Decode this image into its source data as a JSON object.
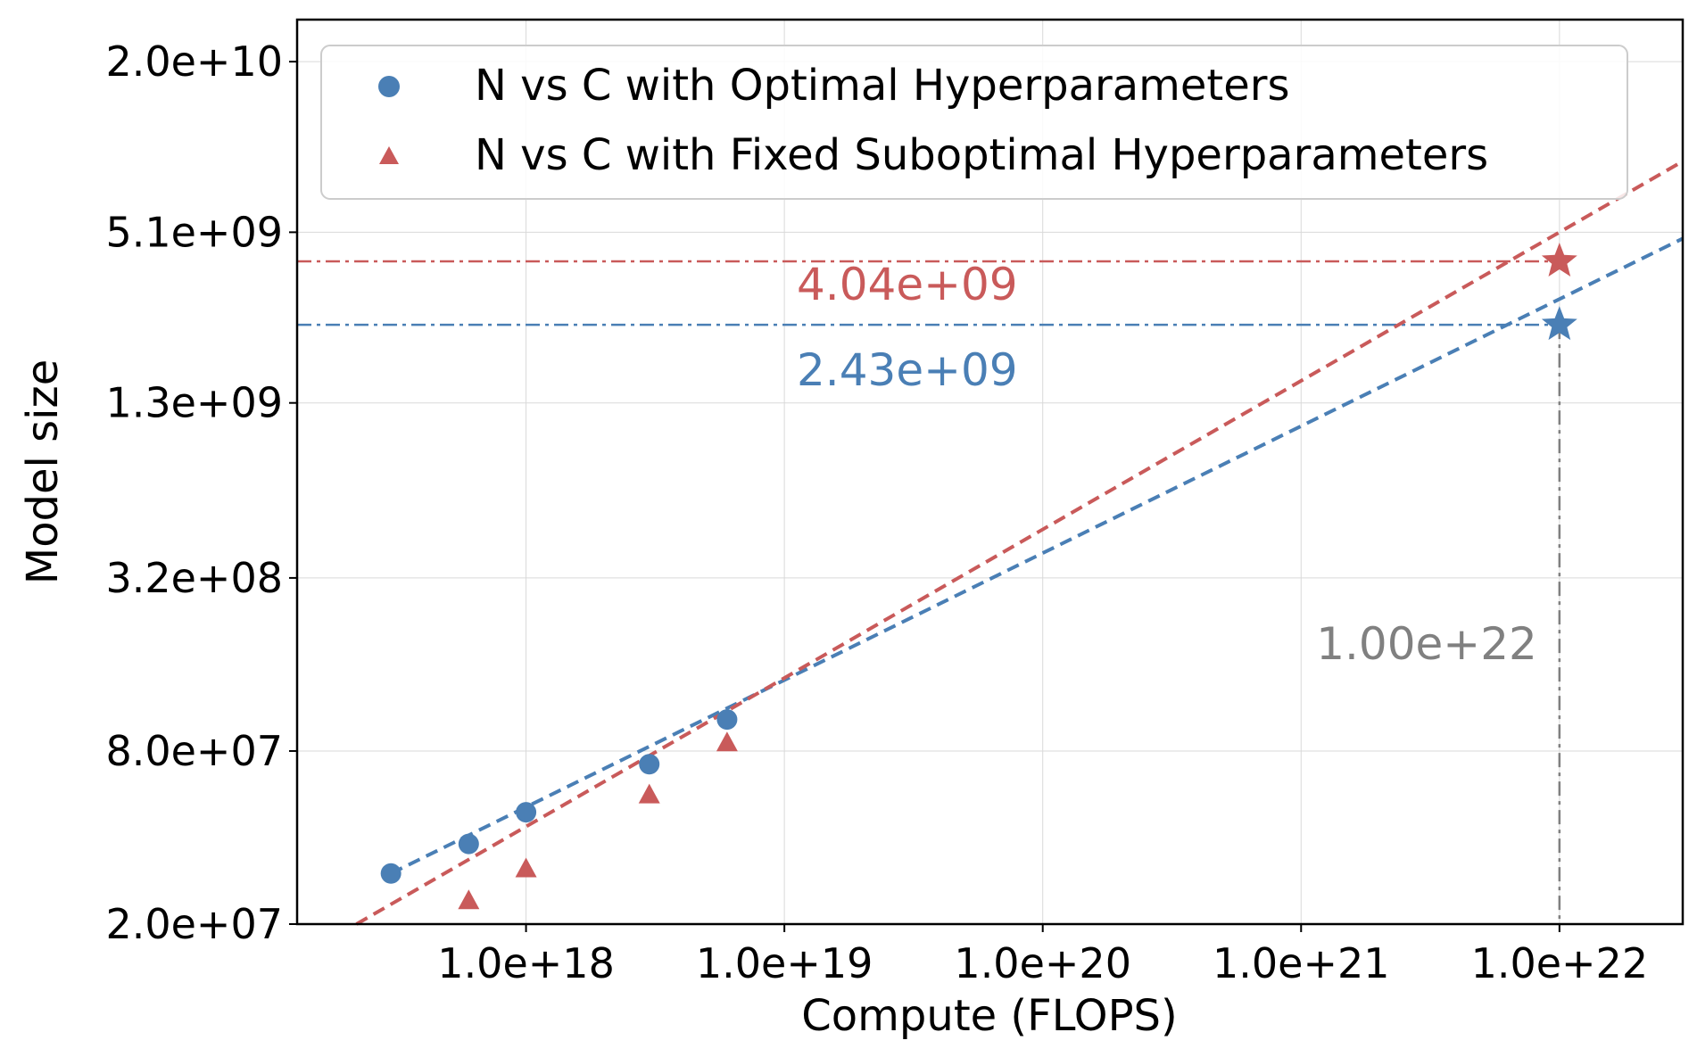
{
  "chart_data": {
    "type": "scatter",
    "xlabel": "Compute (FLOPS)",
    "ylabel": "Model size",
    "xscale": "log",
    "yscale": "log",
    "xlim": [
      1.3e+17,
      3e+22
    ],
    "ylim": [
      20000000.0,
      28000000000.0
    ],
    "grid": true,
    "legend_position": "top-left",
    "x_ticks": [
      {
        "value": 1e+18,
        "label": "1.0e+18"
      },
      {
        "value": 1e+19,
        "label": "1.0e+19"
      },
      {
        "value": 1e+20,
        "label": "1.0e+20"
      },
      {
        "value": 1e+21,
        "label": "1.0e+21"
      },
      {
        "value": 1e+22,
        "label": "1.0e+22"
      }
    ],
    "y_ticks": [
      {
        "value": 20000000.0,
        "label": "2.0e+07"
      },
      {
        "value": 80000000.0,
        "label": "8.0e+07"
      },
      {
        "value": 320000000.0,
        "label": "3.2e+08"
      },
      {
        "value": 1300000000.0,
        "label": "1.3e+09"
      },
      {
        "value": 5100000000.0,
        "label": "5.1e+09"
      },
      {
        "value": 20000000000.0,
        "label": "2.0e+10"
      }
    ],
    "series": [
      {
        "name": "N vs C with Optimal Hyperparameters",
        "color": "#4a7fb5",
        "marker": "circle",
        "x": [
          3e+17,
          6e+17,
          1e+18,
          3e+18,
          6e+18
        ],
        "y": [
          30000000.0,
          38000000.0,
          49000000.0,
          72000000.0,
          103000000.0
        ],
        "fit": {
          "x_start": 3e+17,
          "y_start": 30000000.0,
          "x_end": 3e+22,
          "y_end": 4850000000.0
        },
        "prediction": {
          "x": 1e+22,
          "y": 2430000000.0,
          "label": "2.43e+09"
        }
      },
      {
        "name": "N vs C with Fixed Suboptimal Hyperparameters",
        "color": "#c95a5a",
        "marker": "triangle",
        "x": [
          6e+17,
          1e+18,
          3e+18,
          6e+18
        ],
        "y": [
          24000000.0,
          31000000.0,
          56000000.0,
          85000000.0
        ],
        "fit": {
          "x_start": 1.8e+17,
          "y_start": 18000000.0,
          "x_end": 3e+22,
          "y_end": 9000000000.0
        },
        "prediction": {
          "x": 1e+22,
          "y": 4040000000.0,
          "label": "4.04e+09"
        }
      }
    ],
    "annotations": [
      {
        "text": "1.00e+22",
        "color": "#808080",
        "kind": "vertical-reference",
        "value": 1e+22
      }
    ]
  }
}
